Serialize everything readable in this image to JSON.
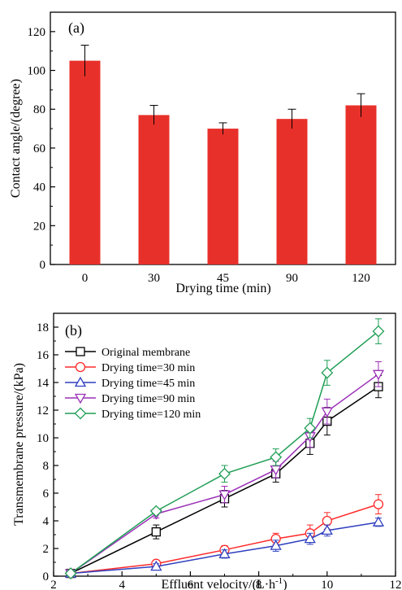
{
  "chart_data": [
    {
      "type": "bar",
      "panel_label": "(a)",
      "xlabel": "Drying time (min)",
      "ylabel": "Contact angle/(degree)",
      "categories": [
        "0",
        "30",
        "45",
        "90",
        "120"
      ],
      "values": [
        105,
        77,
        70,
        75,
        82
      ],
      "errors": [
        8,
        5,
        3,
        5,
        6
      ],
      "ylim": [
        0,
        130
      ],
      "yticks": [
        0,
        20,
        40,
        60,
        80,
        100,
        120
      ],
      "bar_color": "#e8302a",
      "grid": false
    },
    {
      "type": "line",
      "panel_label": "(b)",
      "xlabel": "Effluent velocity/(L·h",
      "xlabel_sup": "-1",
      "xlabel_end": ")",
      "ylabel": "Transmembrane pressure/(kPa)",
      "xlim": [
        2,
        12
      ],
      "ylim": [
        0,
        19
      ],
      "xticks": [
        2,
        4,
        6,
        8,
        10,
        12
      ],
      "yticks": [
        0,
        2,
        4,
        6,
        8,
        10,
        12,
        14,
        16,
        18
      ],
      "legend_position": "top-left",
      "grid": false,
      "x": [
        2.5,
        5,
        7,
        8.5,
        9.5,
        10,
        11.5
      ],
      "series": [
        {
          "name": "Original membrane",
          "color": "#000000",
          "marker": "square",
          "values": [
            0.2,
            3.2,
            5.6,
            7.4,
            9.6,
            11.2,
            13.7
          ],
          "errors": [
            0.1,
            0.5,
            0.6,
            0.6,
            0.8,
            1.0,
            0.8
          ]
        },
        {
          "name": "Drying time=30 min",
          "color": "#ff2a2a",
          "marker": "circle",
          "values": [
            0.2,
            0.9,
            1.9,
            2.7,
            3.1,
            4.0,
            5.2
          ],
          "errors": [
            0.1,
            0.2,
            0.3,
            0.4,
            0.6,
            0.6,
            0.7
          ]
        },
        {
          "name": "Drying time=45 min",
          "color": "#2f3fbf",
          "marker": "triangle-up",
          "values": [
            0.2,
            0.7,
            1.6,
            2.2,
            2.7,
            3.3,
            3.9
          ],
          "errors": [
            0.1,
            0.2,
            0.3,
            0.4,
            0.4,
            0.4,
            0.3
          ]
        },
        {
          "name": "Drying time=90 min",
          "color": "#9b30b8",
          "marker": "triangle-down",
          "values": [
            0.2,
            4.5,
            5.9,
            7.7,
            10.1,
            11.9,
            14.6
          ],
          "errors": [
            0.1,
            0.3,
            0.6,
            0.6,
            0.8,
            0.9,
            0.9
          ]
        },
        {
          "name": "Drying time=120 min",
          "color": "#1f9e55",
          "marker": "diamond",
          "values": [
            0.2,
            4.7,
            7.4,
            8.6,
            10.7,
            14.7,
            17.7
          ],
          "errors": [
            0.1,
            0.2,
            0.6,
            0.6,
            0.7,
            0.9,
            0.9
          ]
        }
      ]
    }
  ]
}
